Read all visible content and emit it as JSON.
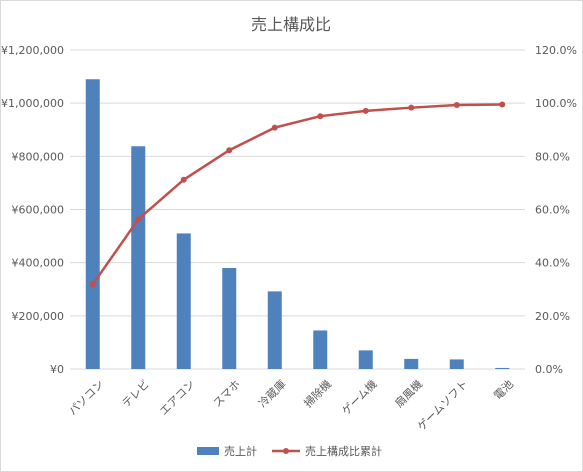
{
  "chart_data": {
    "type": "bar",
    "title": "売上構成比",
    "categories": [
      "パソコン",
      "テレビ",
      "エアコン",
      "スマホ",
      "冷蔵庫",
      "掃除機",
      "ゲーム機",
      "扇風機",
      "ゲームソフト",
      "電池"
    ],
    "series": [
      {
        "name": "売上計",
        "type": "bar",
        "axis": "left",
        "color": "#4f81bd",
        "values": [
          1090000,
          838000,
          510000,
          380000,
          292000,
          145000,
          70000,
          38000,
          36000,
          4000
        ]
      },
      {
        "name": "売上構成比累計",
        "type": "line",
        "axis": "right",
        "color": "#c0504d",
        "values": [
          31.8,
          56.3,
          71.2,
          82.3,
          90.8,
          95.1,
          97.1,
          98.3,
          99.3,
          99.5
        ]
      }
    ],
    "y_left": {
      "ylim": [
        0,
        1200000
      ],
      "ticks": [
        0,
        200000,
        400000,
        600000,
        800000,
        1000000,
        1200000
      ],
      "tick_labels": [
        "¥0",
        "¥200,000",
        "¥400,000",
        "¥600,000",
        "¥800,000",
        "¥1,000,000",
        "¥1,200,000"
      ]
    },
    "y_right": {
      "ylim": [
        0,
        120
      ],
      "ticks": [
        0,
        20,
        40,
        60,
        80,
        100,
        120
      ],
      "tick_labels": [
        "0.0%",
        "20.0%",
        "40.0%",
        "60.0%",
        "80.0%",
        "100.0%",
        "120.0%"
      ]
    },
    "grid": true,
    "legend": "bottom",
    "colors": {
      "grid": "#d9d9d9",
      "text": "#595959",
      "bar": "#4f81bd",
      "line": "#c0504d"
    }
  }
}
